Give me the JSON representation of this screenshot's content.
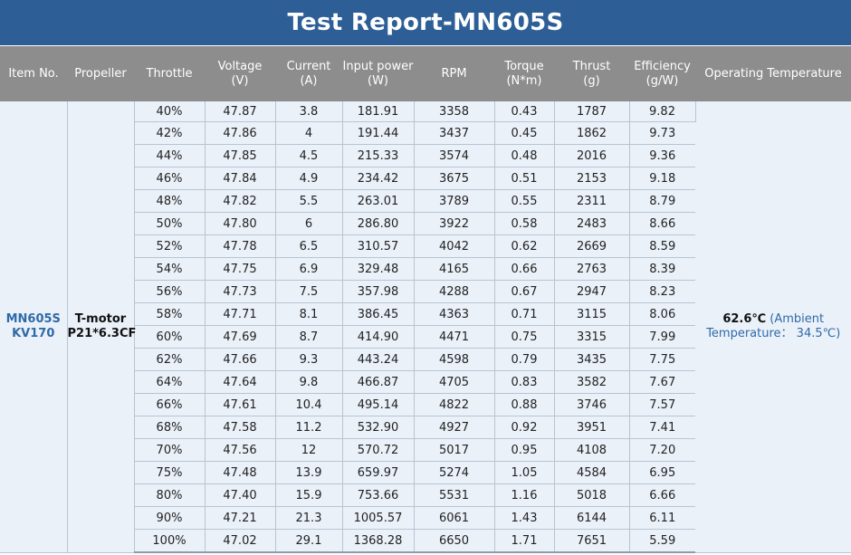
{
  "title": "Test Report-MN605S",
  "headers": [
    {
      "l1": "Item No.",
      "l2": ""
    },
    {
      "l1": "Propeller",
      "l2": ""
    },
    {
      "l1": "Throttle",
      "l2": ""
    },
    {
      "l1": "Voltage",
      "l2": "(V)"
    },
    {
      "l1": "Current",
      "l2": "(A)"
    },
    {
      "l1": "Input power",
      "l2": "(W)"
    },
    {
      "l1": "RPM",
      "l2": ""
    },
    {
      "l1": "Torque",
      "l2": "(N*m)"
    },
    {
      "l1": "Thrust",
      "l2": "(g)"
    },
    {
      "l1": "Efficiency",
      "l2": "(g/W)"
    },
    {
      "l1": "Operating Temperature",
      "l2": ""
    }
  ],
  "item_no": {
    "l1": "MN605S",
    "l2": "KV170"
  },
  "propeller": {
    "l1": "T-motor",
    "l2": "P21*6.3CF"
  },
  "operating_temperature": {
    "temp": "62.6℃",
    "note1": " (Ambient",
    "note2": "Temperature： 34.5℃)"
  },
  "rows": [
    [
      "40%",
      "47.87",
      "3.8",
      "181.91",
      "3358",
      "0.43",
      "1787",
      "9.82"
    ],
    [
      "42%",
      "47.86",
      "4",
      "191.44",
      "3437",
      "0.45",
      "1862",
      "9.73"
    ],
    [
      "44%",
      "47.85",
      "4.5",
      "215.33",
      "3574",
      "0.48",
      "2016",
      "9.36"
    ],
    [
      "46%",
      "47.84",
      "4.9",
      "234.42",
      "3675",
      "0.51",
      "2153",
      "9.18"
    ],
    [
      "48%",
      "47.82",
      "5.5",
      "263.01",
      "3789",
      "0.55",
      "2311",
      "8.79"
    ],
    [
      "50%",
      "47.80",
      "6",
      "286.80",
      "3922",
      "0.58",
      "2483",
      "8.66"
    ],
    [
      "52%",
      "47.78",
      "6.5",
      "310.57",
      "4042",
      "0.62",
      "2669",
      "8.59"
    ],
    [
      "54%",
      "47.75",
      "6.9",
      "329.48",
      "4165",
      "0.66",
      "2763",
      "8.39"
    ],
    [
      "56%",
      "47.73",
      "7.5",
      "357.98",
      "4288",
      "0.67",
      "2947",
      "8.23"
    ],
    [
      "58%",
      "47.71",
      "8.1",
      "386.45",
      "4363",
      "0.71",
      "3115",
      "8.06"
    ],
    [
      "60%",
      "47.69",
      "8.7",
      "414.90",
      "4471",
      "0.75",
      "3315",
      "7.99"
    ],
    [
      "62%",
      "47.66",
      "9.3",
      "443.24",
      "4598",
      "0.79",
      "3435",
      "7.75"
    ],
    [
      "64%",
      "47.64",
      "9.8",
      "466.87",
      "4705",
      "0.83",
      "3582",
      "7.67"
    ],
    [
      "66%",
      "47.61",
      "10.4",
      "495.14",
      "4822",
      "0.88",
      "3746",
      "7.57"
    ],
    [
      "68%",
      "47.58",
      "11.2",
      "532.90",
      "4927",
      "0.92",
      "3951",
      "7.41"
    ],
    [
      "70%",
      "47.56",
      "12",
      "570.72",
      "5017",
      "0.95",
      "4108",
      "7.20"
    ],
    [
      "75%",
      "47.48",
      "13.9",
      "659.97",
      "5274",
      "1.05",
      "4584",
      "6.95"
    ],
    [
      "80%",
      "47.40",
      "15.9",
      "753.66",
      "5531",
      "1.16",
      "5018",
      "6.66"
    ],
    [
      "90%",
      "47.21",
      "21.3",
      "1005.57",
      "6061",
      "1.43",
      "6144",
      "6.11"
    ],
    [
      "100%",
      "47.02",
      "29.1",
      "1368.28",
      "6650",
      "1.71",
      "7651",
      "5.59"
    ]
  ],
  "colors": {
    "title_bg": "#2d5f96",
    "header_bg": "#8d8d8d",
    "body_bg": "#ebf1f9",
    "accent_text": "#2f6aa8"
  }
}
